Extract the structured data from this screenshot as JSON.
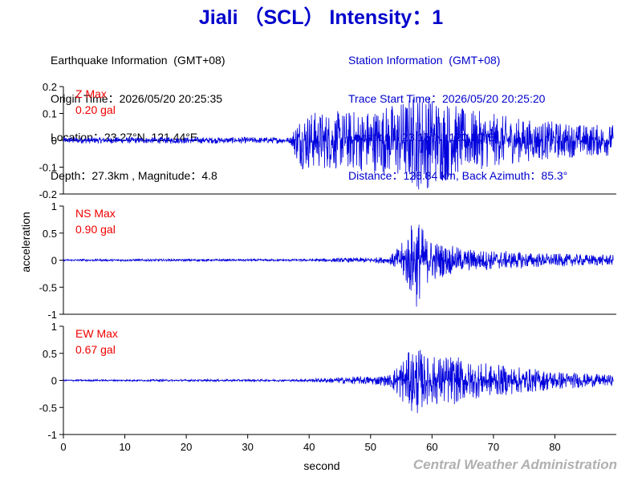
{
  "header": {
    "title": "Jiali （SCL） Intensity：1"
  },
  "earthquake_info": {
    "heading": "Earthquake Information  (GMT+08)",
    "origin_time": "Origin Time：2026/05/20 20:25:35",
    "location": "Location：23.27°N, 121.44°E",
    "depth_magnitude": "Depth：27.3km , Magnitude：4.8"
  },
  "station_info": {
    "heading": "Station Information  (GMT+08)",
    "trace_start": "Trace Start Time：2026/05/20 20:25:20",
    "location": "Location：23.17°N, 120.20°E",
    "distance": "Distance：126.84 km, Back Azimuth：85.3°"
  },
  "footer": {
    "credit": "Central Weather Administration"
  },
  "chart_data": {
    "type": "line",
    "xlabel": "second",
    "ylabel": "acceleration",
    "xlim": [
      0,
      90
    ],
    "x_ticks": [
      "0",
      "10",
      "20",
      "30",
      "40",
      "50",
      "60",
      "70",
      "80"
    ],
    "x_tick_values": [
      0,
      10,
      20,
      30,
      40,
      50,
      60,
      70,
      80
    ],
    "trace_color": "#0000dd",
    "label_color": "#ee0000",
    "panels": [
      {
        "name": "Z Max",
        "max_label": "0.20 gal",
        "ylim": [
          -0.2,
          0.2
        ],
        "y_ticks": [
          "0.2",
          "0.1",
          "0",
          "-0.1",
          "-0.2"
        ],
        "y_tick_values": [
          0.2,
          0.1,
          0,
          -0.1,
          -0.2
        ],
        "envelope": {
          "t": [
            0,
            37,
            38,
            39,
            45,
            50,
            55,
            58,
            62,
            65,
            70,
            75,
            80,
            85,
            89.5
          ],
          "amp": [
            0.012,
            0.012,
            0.08,
            0.11,
            0.11,
            0.12,
            0.15,
            0.19,
            0.16,
            0.12,
            0.1,
            0.08,
            0.07,
            0.06,
            0.06
          ]
        }
      },
      {
        "name": "NS Max",
        "max_label": "0.90 gal",
        "ylim": [
          -1,
          1
        ],
        "y_ticks": [
          "1",
          "0.5",
          "0",
          "-0.5",
          "-1"
        ],
        "y_tick_values": [
          1,
          0.5,
          0,
          -0.5,
          -1
        ],
        "envelope": {
          "t": [
            0,
            38,
            45,
            53,
            55,
            56,
            57.5,
            59,
            62,
            65,
            70,
            80,
            89.5
          ],
          "amp": [
            0.02,
            0.02,
            0.04,
            0.06,
            0.3,
            0.55,
            0.9,
            0.45,
            0.3,
            0.22,
            0.18,
            0.12,
            0.1
          ]
        }
      },
      {
        "name": "EW Max",
        "max_label": "0.67 gal",
        "ylim": [
          -1,
          1
        ],
        "y_ticks": [
          "1",
          "0.5",
          "0",
          "-0.5",
          "-1"
        ],
        "y_tick_values": [
          1,
          0.5,
          0,
          -0.5,
          -1
        ],
        "envelope": {
          "t": [
            0,
            38,
            45,
            53,
            55,
            56,
            57.5,
            59,
            63,
            66,
            70,
            78,
            85,
            89.5
          ],
          "amp": [
            0.015,
            0.02,
            0.06,
            0.1,
            0.4,
            0.5,
            0.67,
            0.45,
            0.48,
            0.35,
            0.3,
            0.2,
            0.13,
            0.1
          ]
        }
      }
    ]
  }
}
